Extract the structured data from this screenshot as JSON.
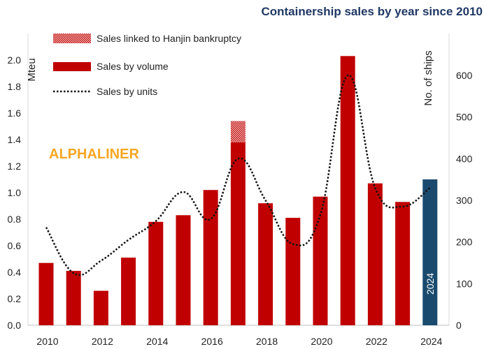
{
  "chart_data": {
    "type": "bar",
    "title": "Containership sales by year since 2010",
    "watermark": "ALPHALINER",
    "ylabel_left": "Mteu",
    "ylabel_right": "No. of ships",
    "ylim_left": [
      0,
      2.0
    ],
    "ylim_right": [
      0,
      600
    ],
    "yticks_left": [
      "0.0",
      "0.2",
      "0.4",
      "0.6",
      "0.8",
      "1.0",
      "1.2",
      "1.4",
      "1.6",
      "1.8",
      "2.0"
    ],
    "yticks_right": [
      "0",
      "100",
      "200",
      "300",
      "400",
      "500",
      "600"
    ],
    "xtick_labels": [
      "2010",
      "2012",
      "2014",
      "2016",
      "2018",
      "2020",
      "2022",
      "2024"
    ],
    "categories": [
      2010,
      2011,
      2012,
      2013,
      2014,
      2015,
      2016,
      2017,
      2018,
      2019,
      2020,
      2021,
      2022,
      2023,
      2024
    ],
    "legend": [
      {
        "label": "Sales linked to Hanjin bankruptcy",
        "style": "hatched",
        "color": "#c00000"
      },
      {
        "label": "Sales by volume",
        "style": "bar",
        "color": "#c00000"
      },
      {
        "label": "Sales by units",
        "style": "dotted-line",
        "color": "#111111"
      }
    ],
    "series": [
      {
        "name": "Sales by volume",
        "axis": "left",
        "color": "#c00000",
        "values": [
          0.47,
          0.41,
          0.26,
          0.51,
          0.78,
          0.83,
          1.02,
          1.38,
          0.92,
          0.81,
          0.97,
          2.03,
          1.07,
          0.93,
          1.1
        ]
      },
      {
        "name": "Sales linked to Hanjin bankruptcy",
        "axis": "left",
        "color": "#c00000",
        "values": [
          0,
          0,
          0,
          0,
          0,
          0,
          0,
          0.16,
          0,
          0,
          0,
          0,
          0,
          0,
          0
        ]
      },
      {
        "name": "Sales by units",
        "axis": "right",
        "color": "#111111",
        "values": [
          235,
          125,
          155,
          205,
          250,
          320,
          255,
          400,
          300,
          195,
          265,
          600,
          330,
          285,
          330
        ]
      }
    ],
    "highlight": {
      "year": 2024,
      "color": "#1a4a6e",
      "label": "2024"
    }
  }
}
